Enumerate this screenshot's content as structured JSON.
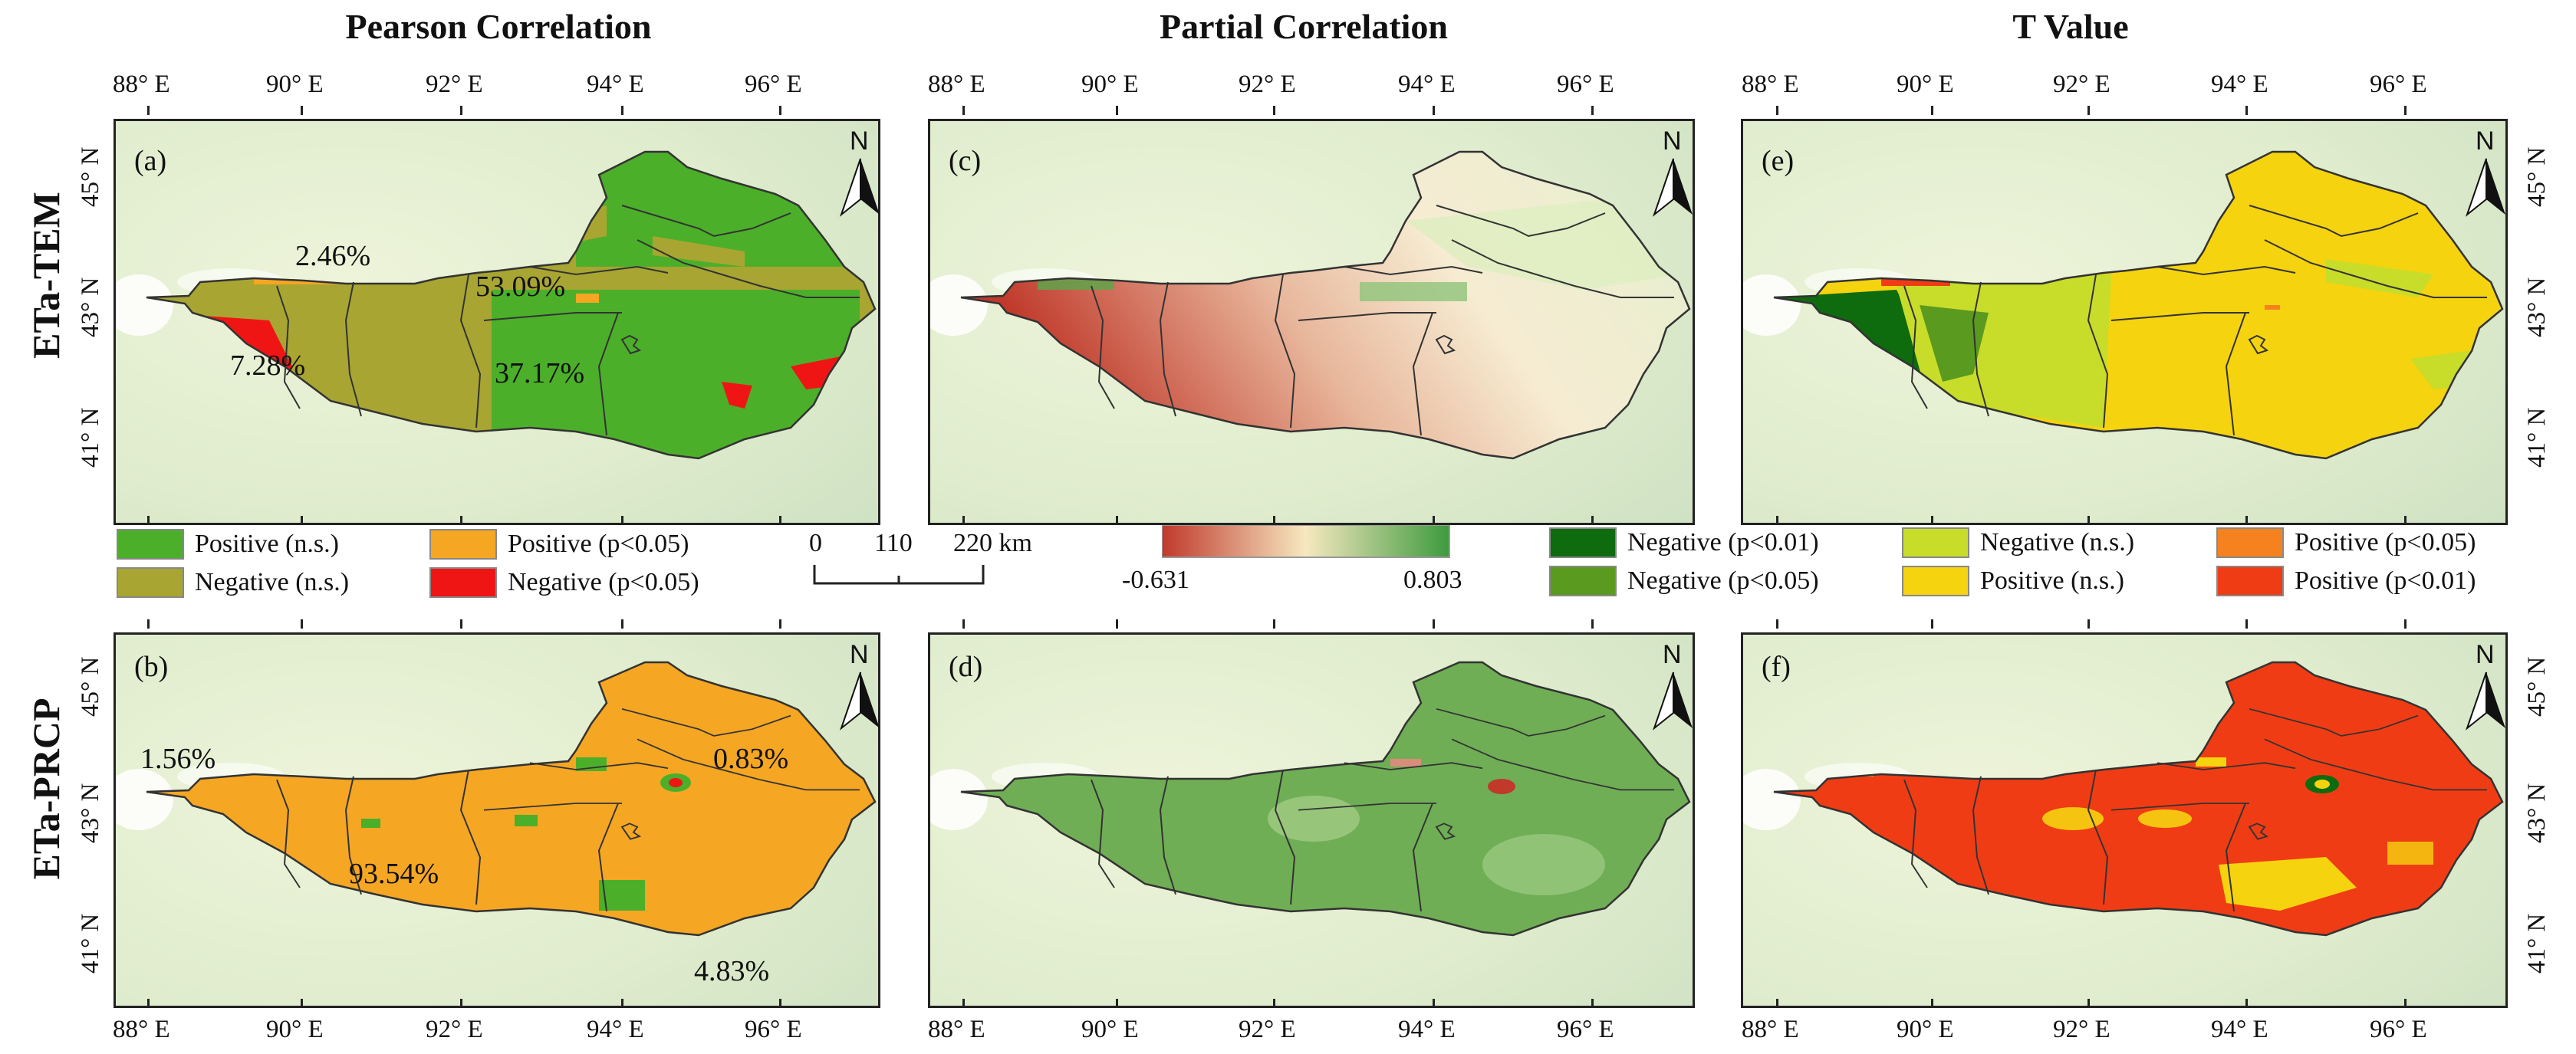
{
  "columns": [
    "Pearson Correlation",
    "Partial Correlation",
    "T Value"
  ],
  "rows": [
    "ETa-TEM",
    "ETa-PRCP"
  ],
  "axes": {
    "lon_labels": [
      "88° E",
      "90° E",
      "92° E",
      "94° E",
      "96° E"
    ],
    "lat_labels_top": [
      "45° N",
      "43° N",
      "41° N"
    ],
    "lat_labels_bottom": [
      "45° N",
      "43° N",
      "41° N"
    ]
  },
  "north_label": "N",
  "panels": {
    "a": {
      "label": "(a)",
      "percents": [
        "2.46%",
        "53.09%",
        "7.28%",
        "37.17%"
      ]
    },
    "b": {
      "label": "(b)",
      "percents": [
        "1.56%",
        "0.83%",
        "93.54%",
        "4.83%"
      ]
    },
    "c": {
      "label": "(c)"
    },
    "d": {
      "label": "(d)"
    },
    "e": {
      "label": "(e)"
    },
    "f": {
      "label": "(f)"
    }
  },
  "legend_pearson": [
    {
      "label": "Positive (n.s.)",
      "color": "#4caf2a"
    },
    {
      "label": "Positive (p<0.05)",
      "color": "#f5a623"
    },
    {
      "label": "Negative  (n.s.)",
      "color": "#a8a532"
    },
    {
      "label": "Negative (p<0.05)",
      "color": "#f01515"
    }
  ],
  "scale_bar": {
    "ticks": [
      "0",
      "110",
      "220 km"
    ]
  },
  "colorbar": {
    "min": "-0.631",
    "max": "0.803",
    "colors": [
      "#c0392b",
      "#f6e8c0",
      "#3d9a3d"
    ]
  },
  "legend_tvalue": [
    {
      "label": "Negative (p<0.01)",
      "color": "#0e6b0e"
    },
    {
      "label": "Negative (p<0.05)",
      "color": "#5a9a1e"
    },
    {
      "label": "Negative (n.s.)",
      "color": "#c8dc2a"
    },
    {
      "label": "Positive (n.s.)",
      "color": "#f5d30f"
    },
    {
      "label": "Positive (p<0.05)",
      "color": "#f5821f"
    },
    {
      "label": "Positive (p<0.01)",
      "color": "#f03c14"
    }
  ]
}
